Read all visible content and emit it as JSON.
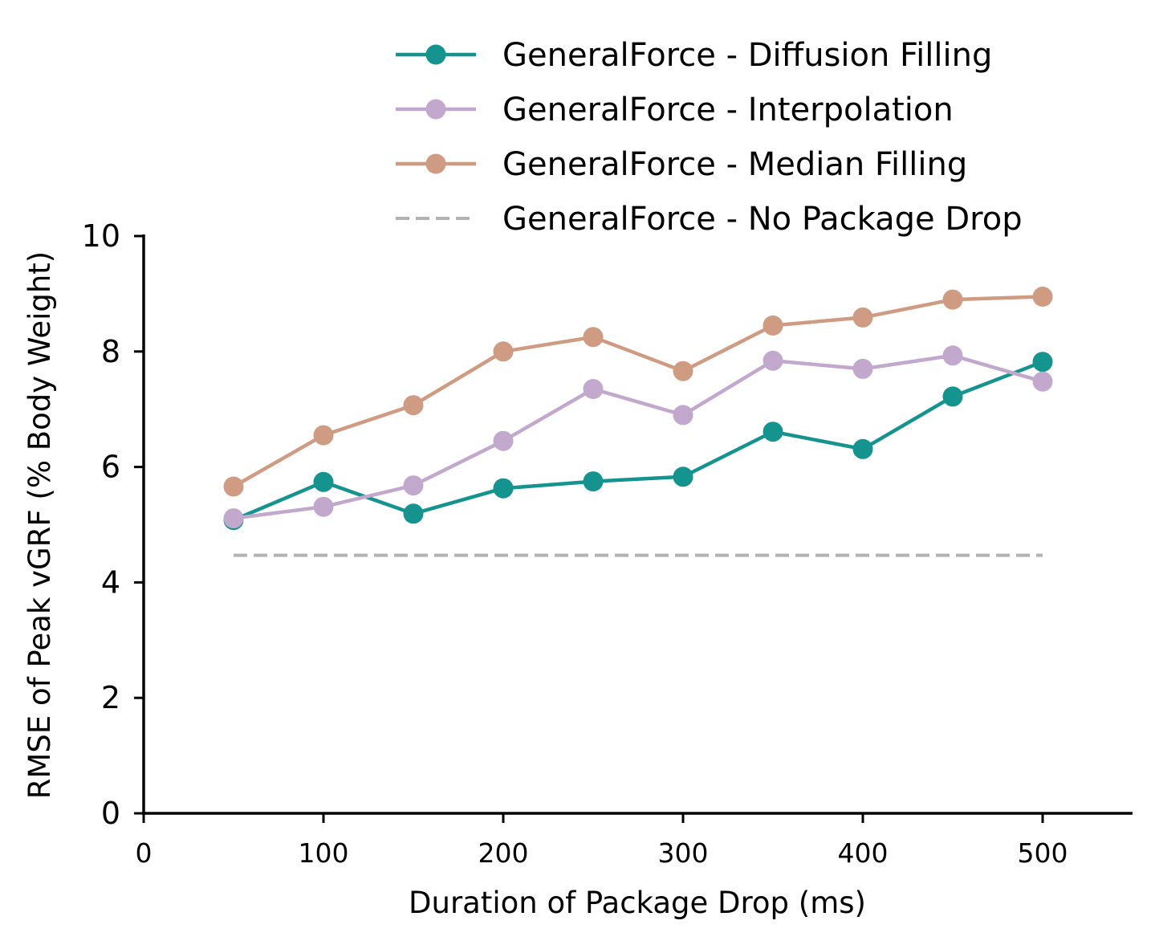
{
  "chart_data": {
    "type": "line",
    "xlabel": "Duration of Package Drop (ms)",
    "ylabel": "RMSE of Peak vGRF (% Body Weight)",
    "xlim": [
      0,
      550
    ],
    "ylim": [
      0,
      10
    ],
    "x_ticks": [
      "0",
      "100",
      "200",
      "300",
      "400",
      "500"
    ],
    "y_ticks": [
      "0",
      "2",
      "4",
      "6",
      "8",
      "10"
    ],
    "grid": false,
    "legend_placement": "top-right",
    "x": [
      50,
      100,
      150,
      200,
      250,
      300,
      350,
      400,
      450,
      500
    ],
    "series": [
      {
        "name": "GeneralForce - Diffusion Filling",
        "style": "solid-marker",
        "color": "#14938f",
        "values": [
          5.08,
          5.74,
          5.19,
          5.63,
          5.75,
          5.83,
          6.61,
          6.31,
          7.22,
          7.82
        ]
      },
      {
        "name": "GeneralForce - Interpolation",
        "style": "solid-marker",
        "color": "#c3a8cd",
        "values": [
          5.11,
          5.31,
          5.68,
          6.45,
          7.35,
          6.9,
          7.84,
          7.7,
          7.93,
          7.48
        ]
      },
      {
        "name": "GeneralForce - Median Filling",
        "style": "solid-marker",
        "color": "#cf9b82",
        "values": [
          5.66,
          6.55,
          7.07,
          8.0,
          8.25,
          7.66,
          8.45,
          8.59,
          8.9,
          8.95
        ]
      },
      {
        "name": "GeneralForce - No Package Drop",
        "style": "dashed",
        "color": "#b3b3b6",
        "values": [
          4.47,
          4.47,
          4.47,
          4.47,
          4.47,
          4.47,
          4.47,
          4.47,
          4.47,
          4.47
        ]
      }
    ]
  }
}
